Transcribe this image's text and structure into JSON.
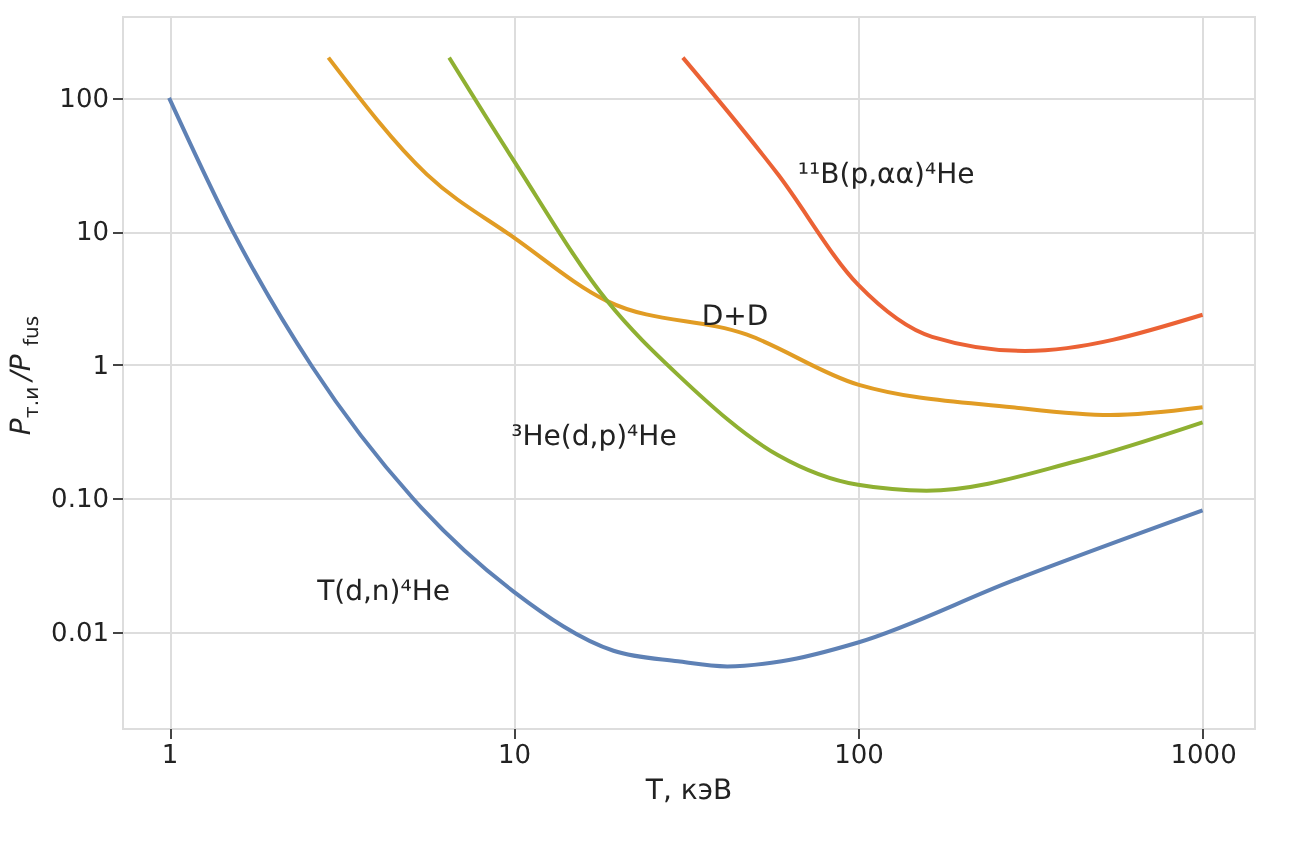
{
  "chart_data": {
    "type": "line",
    "xlabel": "T, кэВ",
    "ylabel": "P$_{т.и}$/P$_{fus}$",
    "log": "xy",
    "grid": true,
    "legend": false,
    "marker": "none",
    "line_style": "solid",
    "xlim": [
      0.73,
      1410
    ],
    "xticks": [
      1,
      10,
      100,
      1000
    ],
    "ylim": [
      0.0019,
      410
    ],
    "yticks": [
      {
        "value": 0.01,
        "label": "0.01"
      },
      {
        "value": 0.1,
        "label": "0.10"
      },
      1,
      10,
      100
    ],
    "series": [
      {
        "name": "T(d,n)⁴He",
        "color": "#5e81b5",
        "x": [
          1,
          1.55,
          2.6,
          5.1,
          10,
          19.5,
          30,
          41.7,
          60,
          100,
          280,
          1000
        ],
        "values": [
          100,
          9.4,
          0.97,
          0.1,
          0.02,
          0.0072,
          0.006,
          0.0055,
          0.006,
          0.0083,
          0.024,
          0.081
        ]
      },
      {
        "name": "D+D",
        "color": "#e19c24",
        "x": [
          2.9,
          5.6,
          10,
          18.7,
          47.6,
          100,
          280,
          540,
          1000
        ],
        "values": [
          200,
          26.7,
          9,
          3.0,
          1.68,
          0.71,
          0.48,
          0.42,
          0.48
        ]
      },
      {
        "name": "³He(d,p)⁴He",
        "color": "#8fb032",
        "x": [
          6.5,
          10,
          18.7,
          30,
          58.6,
          100,
          158,
          433,
          1000
        ],
        "values": [
          200,
          34,
          3.0,
          0.84,
          0.21,
          0.126,
          0.114,
          0.19,
          0.37
        ]
      },
      {
        "name": "¹¹B(p,αα)⁴He",
        "color": "#eb6235",
        "x": [
          31,
          58.6,
          100,
          164,
          305,
          1000
        ],
        "values": [
          200,
          26.6,
          3.98,
          1.62,
          1.27,
          2.37
        ]
      }
    ]
  }
}
